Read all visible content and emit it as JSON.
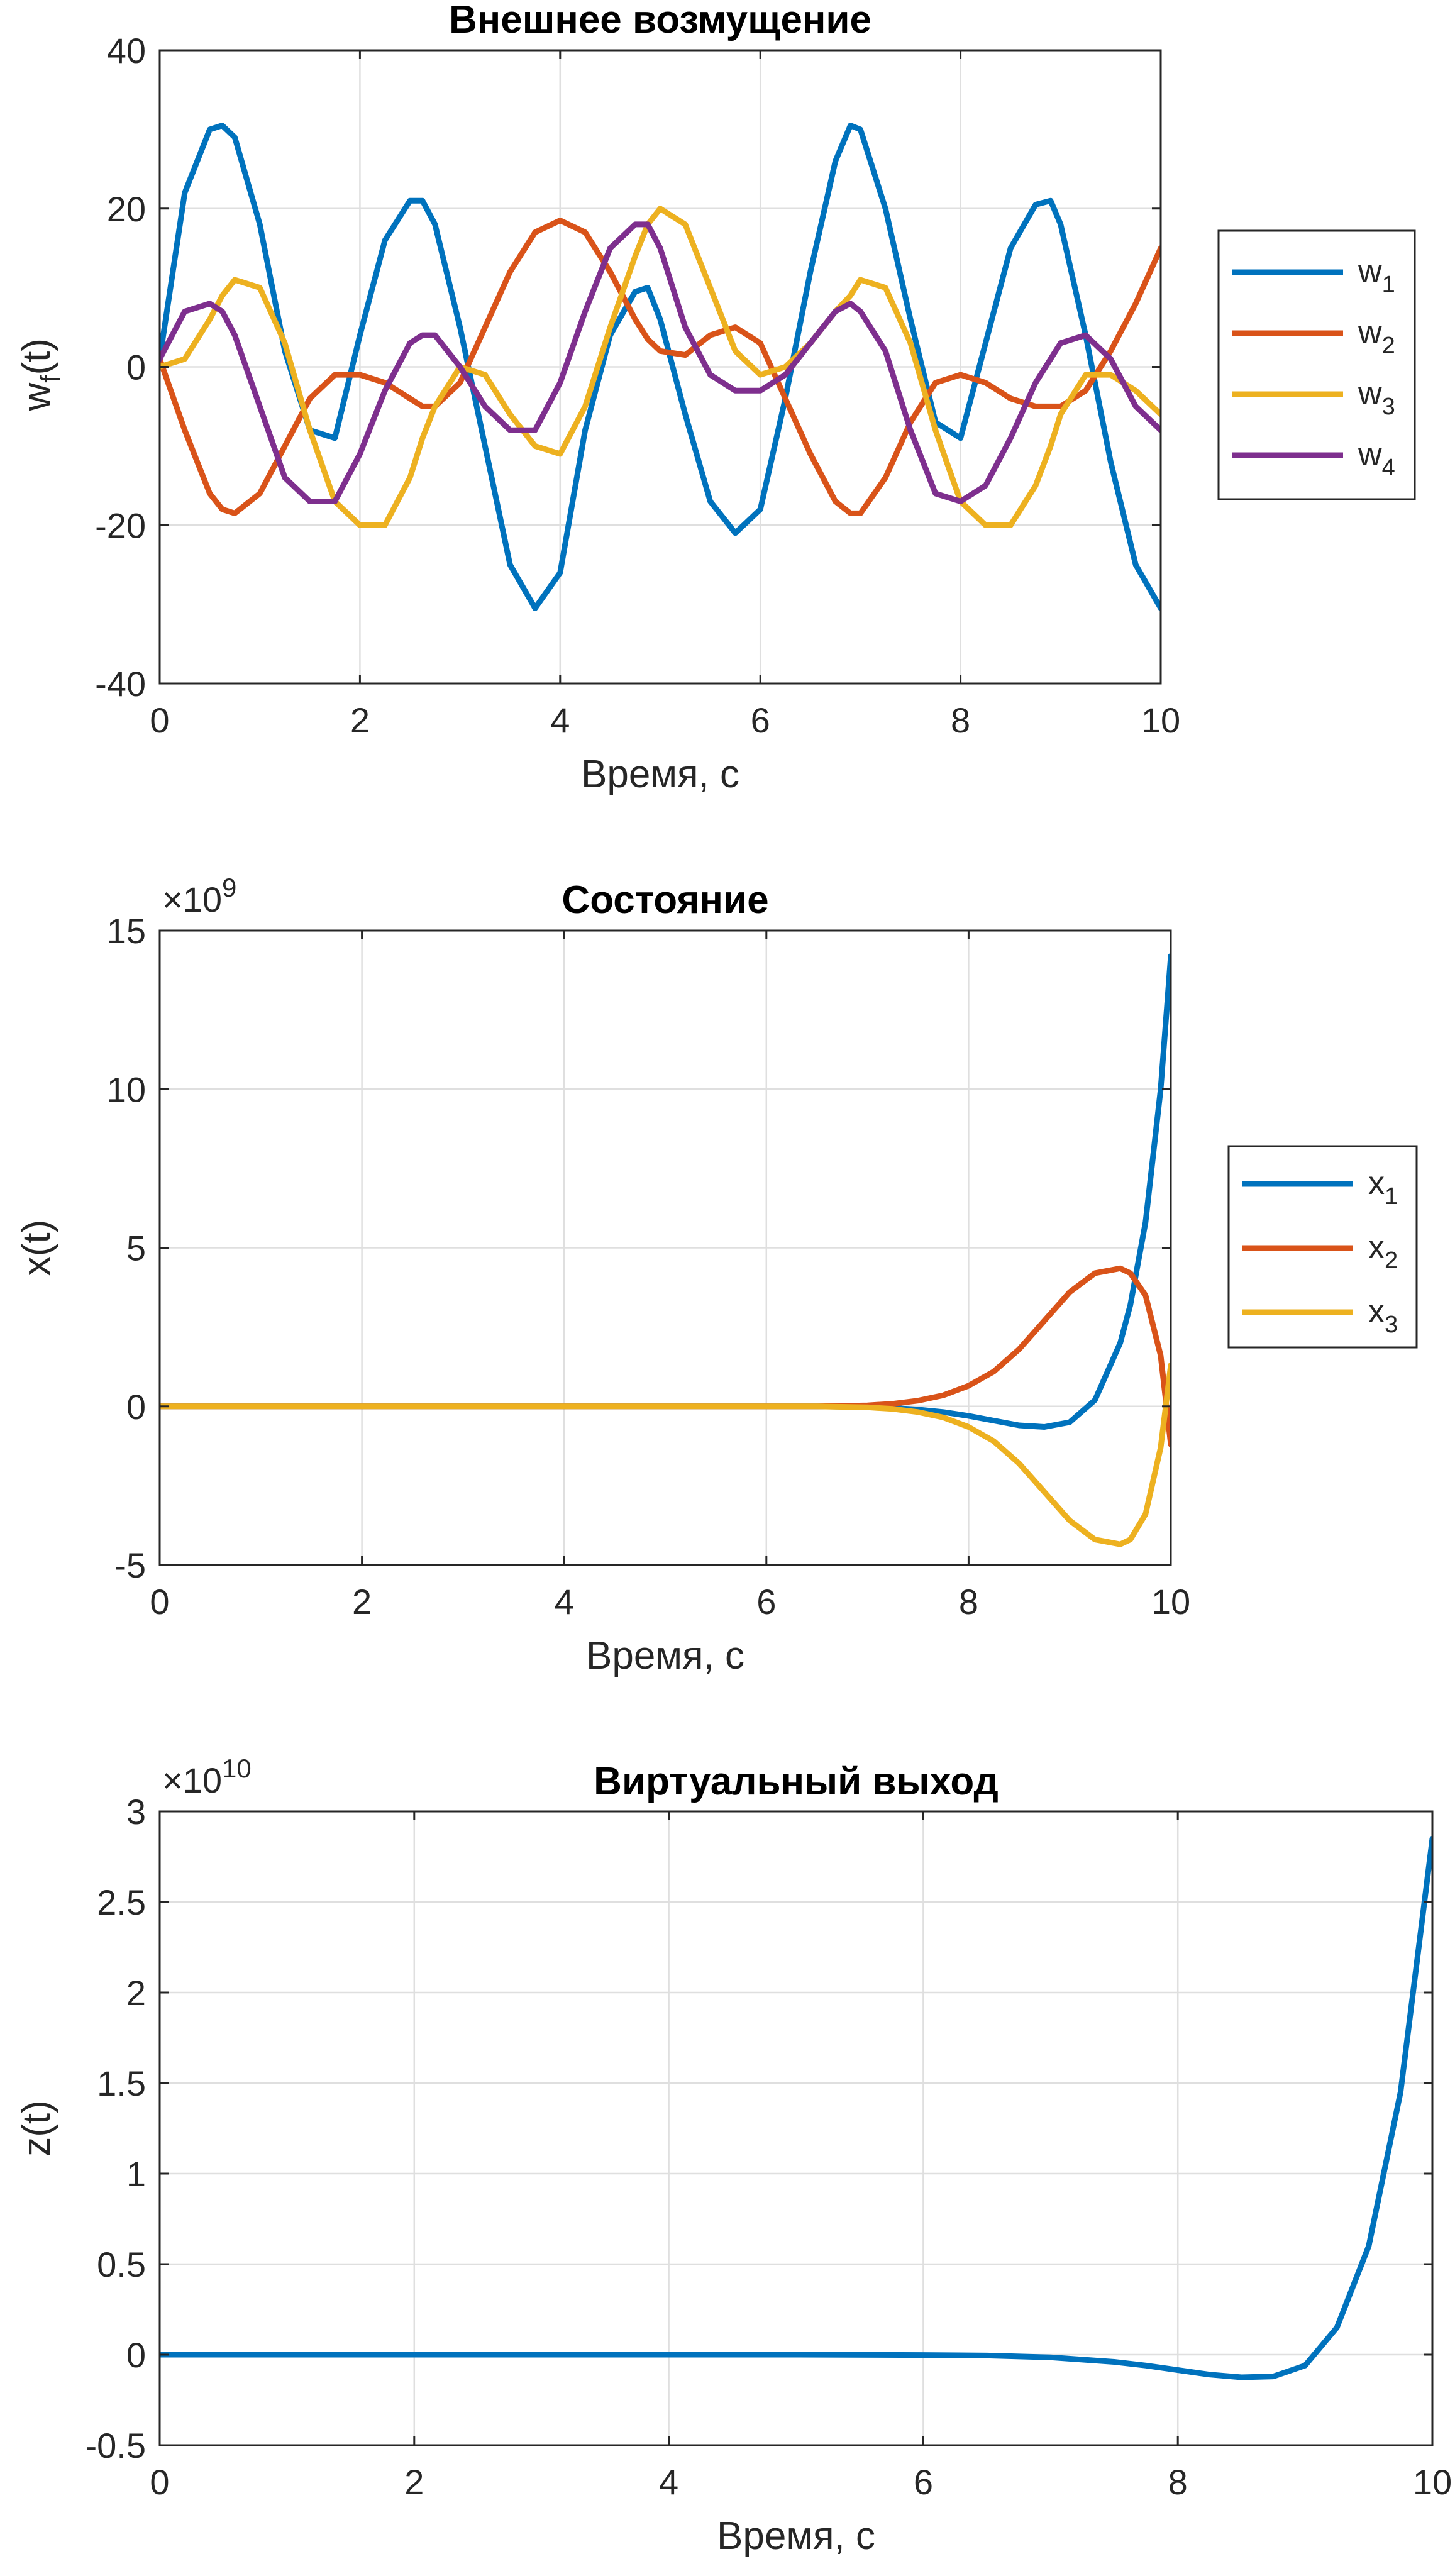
{
  "chart_data": [
    {
      "type": "line",
      "title": "Внешнее возмущение",
      "xlabel": "Время, с",
      "ylabel": {
        "main": "w",
        "sub": "f",
        "rest": "(t)"
      },
      "xlim": [
        0,
        10
      ],
      "ylim": [
        -40,
        40
      ],
      "xticks": [
        "0",
        "2",
        "4",
        "6",
        "8",
        "10"
      ],
      "yticks": [
        "-40",
        "-20",
        "0",
        "20",
        "40"
      ],
      "grid": true,
      "legend_placement": "outside-right",
      "x": [
        0,
        0.25,
        0.5,
        0.625,
        0.75,
        1,
        1.25,
        1.5,
        1.75,
        2,
        2.25,
        2.5,
        2.625,
        2.75,
        3,
        3.25,
        3.5,
        3.75,
        4,
        4.25,
        4.5,
        4.75,
        4.875,
        5,
        5.25,
        5.5,
        5.75,
        6,
        6.25,
        6.5,
        6.75,
        6.9,
        7,
        7.25,
        7.5,
        7.75,
        8,
        8.25,
        8.5,
        8.75,
        8.9,
        9,
        9.25,
        9.5,
        9.75,
        10
      ],
      "series": [
        {
          "name": {
            "main": "w",
            "sub": "1"
          },
          "color": "#0072BD",
          "values": [
            1,
            22,
            30,
            30.5,
            29,
            18,
            2,
            -8,
            -9,
            4,
            16,
            21,
            21,
            18,
            5,
            -10,
            -25,
            -30.5,
            -26,
            -8,
            4,
            9.5,
            10,
            6,
            -6,
            -17,
            -21,
            -18,
            -4,
            12,
            26,
            30.5,
            30,
            20,
            6,
            -7,
            -9,
            3,
            15,
            20.5,
            21,
            18,
            4,
            -12,
            -25,
            -30.5
          ]
        },
        {
          "name": {
            "main": "w",
            "sub": "2"
          },
          "color": "#D95319",
          "values": [
            1,
            -8,
            -16,
            -18,
            -18.5,
            -16,
            -10,
            -4,
            -1,
            -1,
            -2,
            -4,
            -5,
            -5,
            -2,
            5,
            12,
            17,
            18.5,
            17,
            12,
            6,
            3.5,
            2,
            1.5,
            4,
            5,
            3,
            -4,
            -11,
            -17,
            -18.5,
            -18.5,
            -14,
            -7,
            -2,
            -1,
            -2,
            -4,
            -5,
            -5,
            -5,
            -3,
            2,
            8,
            15
          ]
        },
        {
          "name": {
            "main": "w",
            "sub": "3"
          },
          "color": "#EDB120",
          "values": [
            0,
            1,
            6,
            9,
            11,
            10,
            3,
            -8,
            -17,
            -20,
            -20,
            -14,
            -9,
            -5,
            0,
            -1,
            -6,
            -10,
            -11,
            -5,
            5,
            14,
            18,
            20,
            18,
            10,
            2,
            -1,
            0,
            3,
            7,
            9,
            11,
            10,
            3,
            -8,
            -17,
            -20,
            -20,
            -15,
            -10,
            -6,
            -1,
            -1,
            -3,
            -6
          ]
        },
        {
          "name": {
            "main": "w",
            "sub": "4"
          },
          "color": "#7E2F8E",
          "values": [
            1,
            7,
            8,
            7,
            4,
            -5,
            -14,
            -17,
            -17,
            -11,
            -3,
            3,
            4,
            4,
            0,
            -5,
            -8,
            -8,
            -2,
            7,
            15,
            18,
            18,
            15,
            5,
            -1,
            -3,
            -3,
            -1,
            3,
            7,
            8,
            7,
            2,
            -8,
            -16,
            -17,
            -15,
            -9,
            -2,
            1,
            3,
            4,
            1,
            -5,
            -8
          ]
        }
      ]
    },
    {
      "type": "line",
      "title": "Состояние",
      "xlabel": "Время, с",
      "ylabel": "x(t)",
      "exponent": {
        "base": "×10",
        "power": "9"
      },
      "xlim": [
        0,
        10
      ],
      "ylim": [
        -5,
        15
      ],
      "xticks": [
        "0",
        "2",
        "4",
        "6",
        "8",
        "10"
      ],
      "yticks": [
        "-5",
        "0",
        "5",
        "10",
        "15"
      ],
      "grid": true,
      "legend_placement": "outside-right",
      "x": [
        0,
        1,
        2,
        3,
        4,
        5,
        6,
        6.5,
        7,
        7.25,
        7.5,
        7.75,
        8,
        8.25,
        8.5,
        8.75,
        9,
        9.25,
        9.5,
        9.6,
        9.75,
        9.9,
        10
      ],
      "series": [
        {
          "name": {
            "main": "x",
            "sub": "1"
          },
          "color": "#0072BD",
          "values": [
            0,
            0,
            0,
            0,
            0,
            0,
            0,
            0,
            -0.02,
            -0.05,
            -0.1,
            -0.18,
            -0.3,
            -0.45,
            -0.6,
            -0.65,
            -0.5,
            0.2,
            2,
            3.2,
            5.8,
            10,
            14.2
          ]
        },
        {
          "name": {
            "main": "x",
            "sub": "2"
          },
          "color": "#D95319",
          "values": [
            0,
            0,
            0,
            0,
            0,
            0,
            0,
            0,
            0.03,
            0.08,
            0.18,
            0.35,
            0.65,
            1.1,
            1.8,
            2.7,
            3.6,
            4.2,
            4.35,
            4.2,
            3.5,
            1.6,
            -1.2
          ]
        },
        {
          "name": {
            "main": "x",
            "sub": "3"
          },
          "color": "#EDB120",
          "values": [
            0,
            0,
            0,
            0,
            0,
            0,
            0,
            0,
            -0.03,
            -0.08,
            -0.18,
            -0.35,
            -0.65,
            -1.1,
            -1.8,
            -2.7,
            -3.6,
            -4.2,
            -4.35,
            -4.2,
            -3.4,
            -1.3,
            1.3
          ]
        }
      ]
    },
    {
      "type": "line",
      "title": "Виртуальный выход",
      "xlabel": "Время, с",
      "ylabel": "z(t)",
      "exponent": {
        "base": "×10",
        "power": "10"
      },
      "xlim": [
        0,
        10
      ],
      "ylim": [
        -0.5,
        3
      ],
      "xticks": [
        "0",
        "2",
        "4",
        "6",
        "8",
        "10"
      ],
      "yticks": [
        "-0.5",
        "0",
        "0.5",
        "1",
        "1.5",
        "2",
        "2.5",
        "3"
      ],
      "grid": true,
      "x": [
        0,
        1,
        2,
        3,
        4,
        5,
        6,
        6.5,
        7,
        7.5,
        7.75,
        8,
        8.25,
        8.5,
        8.75,
        9,
        9.25,
        9.5,
        9.75,
        10
      ],
      "series": [
        {
          "color": "#0072BD",
          "values": [
            0,
            0,
            0,
            0,
            0,
            0,
            -0.002,
            -0.005,
            -0.015,
            -0.04,
            -0.06,
            -0.085,
            -0.11,
            -0.125,
            -0.12,
            -0.06,
            0.15,
            0.6,
            1.45,
            2.85
          ]
        }
      ]
    }
  ]
}
